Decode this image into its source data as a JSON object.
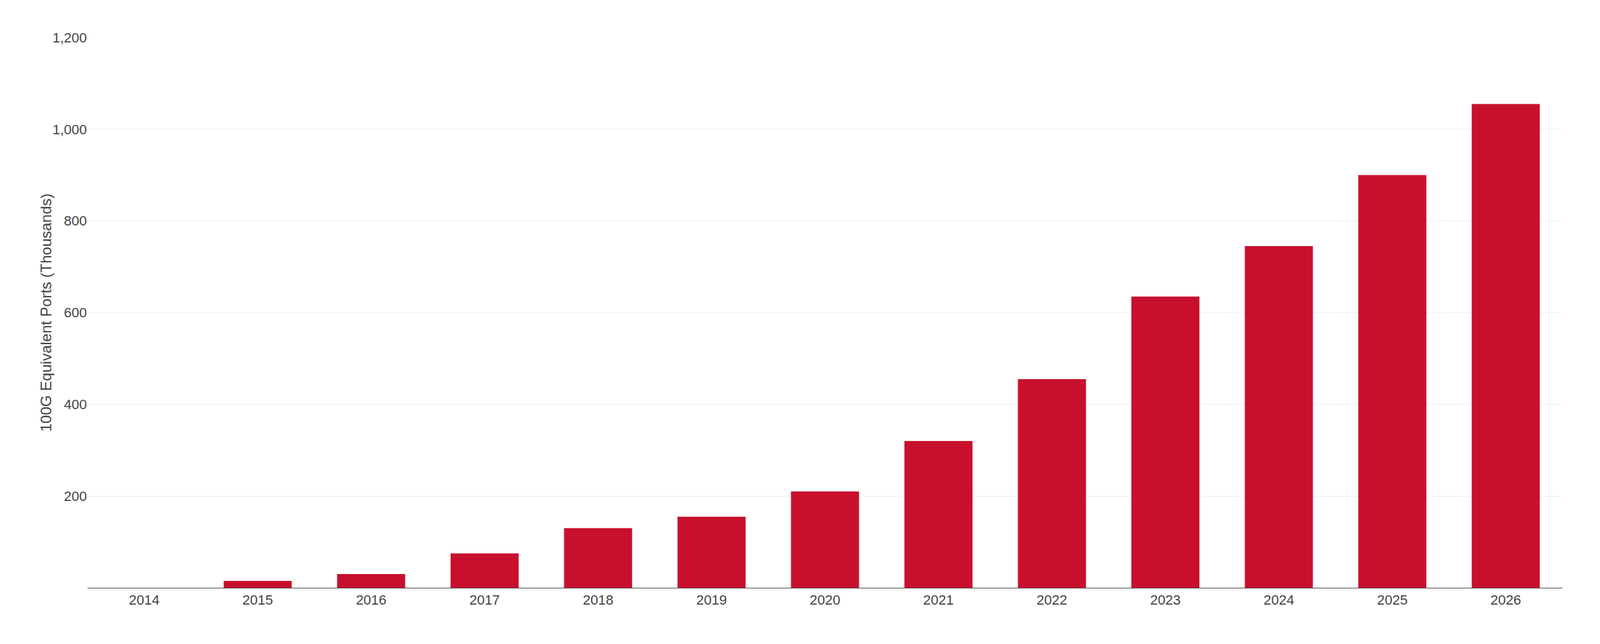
{
  "chart_data": {
    "type": "bar",
    "ylabel": "100G Equivalent Ports (Thousands)",
    "categories": [
      2014,
      2015,
      2016,
      2017,
      2018,
      2019,
      2020,
      2021,
      2022,
      2023,
      2024,
      2025,
      2026
    ],
    "values": [
      0,
      15,
      30,
      75,
      130,
      155,
      210,
      320,
      455,
      635,
      745,
      900,
      1055
    ],
    "color": "#C8102E",
    "ylim": [
      0,
      1200
    ],
    "yticks": [
      200,
      400,
      600,
      800,
      {
        "value": 1000,
        "label": "1,000"
      },
      {
        "value": 1200,
        "label": "1,200"
      }
    ],
    "grid": true
  }
}
